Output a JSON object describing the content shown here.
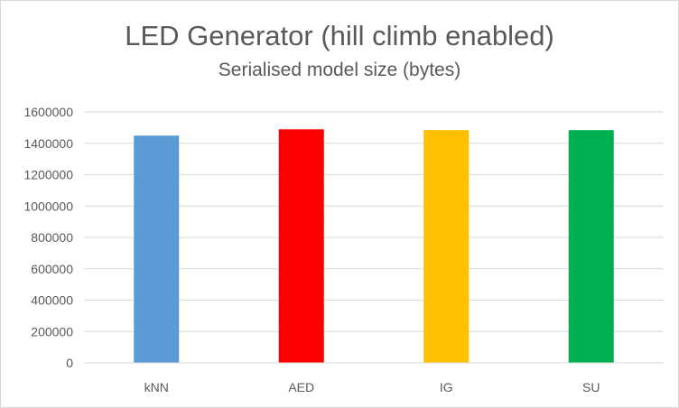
{
  "chart_data": {
    "type": "bar",
    "title": "LED Generator (hill climb enabled)",
    "subtitle": "Serialised model size (bytes)",
    "categories": [
      "kNN",
      "AED",
      "IG",
      "SU"
    ],
    "values": [
      1449000,
      1489000,
      1484000,
      1484000
    ],
    "colors": [
      "#5b9bd5",
      "#ff0000",
      "#ffc000",
      "#00b050"
    ],
    "ylim": [
      0,
      1600000
    ],
    "yticks": [
      0,
      200000,
      400000,
      600000,
      800000,
      1000000,
      1200000,
      1400000,
      1600000
    ],
    "ytick_labels": [
      "0",
      "200000",
      "400000",
      "600000",
      "800000",
      "1000000",
      "1200000",
      "1400000",
      "1600000"
    ],
    "grid": true,
    "legend": "none"
  }
}
